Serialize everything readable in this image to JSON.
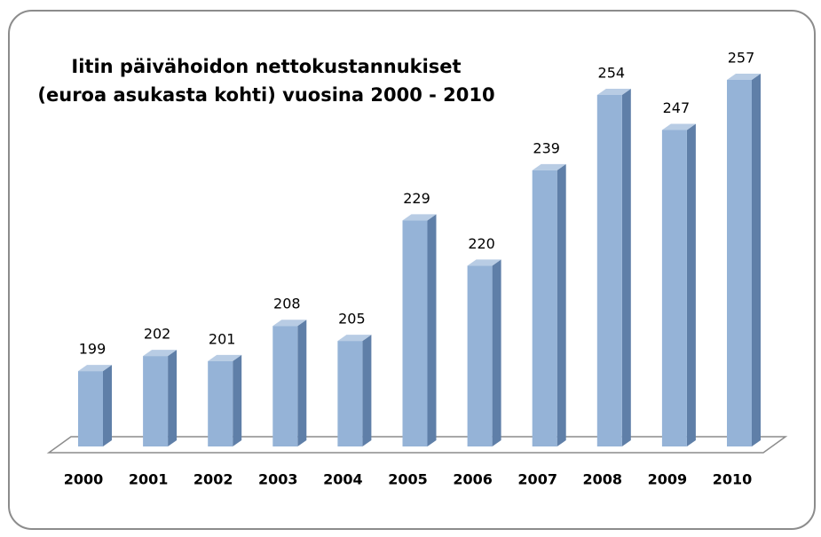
{
  "chart_data": {
    "type": "bar3d",
    "title": [
      "Iitin päivähoidon nettokustannukiset",
      "(euroa asukasta kohti) vuosina 2000 - 2010"
    ],
    "categories": [
      "2000",
      "2001",
      "2002",
      "2003",
      "2004",
      "2005",
      "2006",
      "2007",
      "2008",
      "2009",
      "2010"
    ],
    "values": [
      199,
      202,
      201,
      208,
      205,
      229,
      220,
      239,
      254,
      247,
      257
    ],
    "color": "#95b3d7",
    "ylim": [
      184,
      260
    ]
  }
}
